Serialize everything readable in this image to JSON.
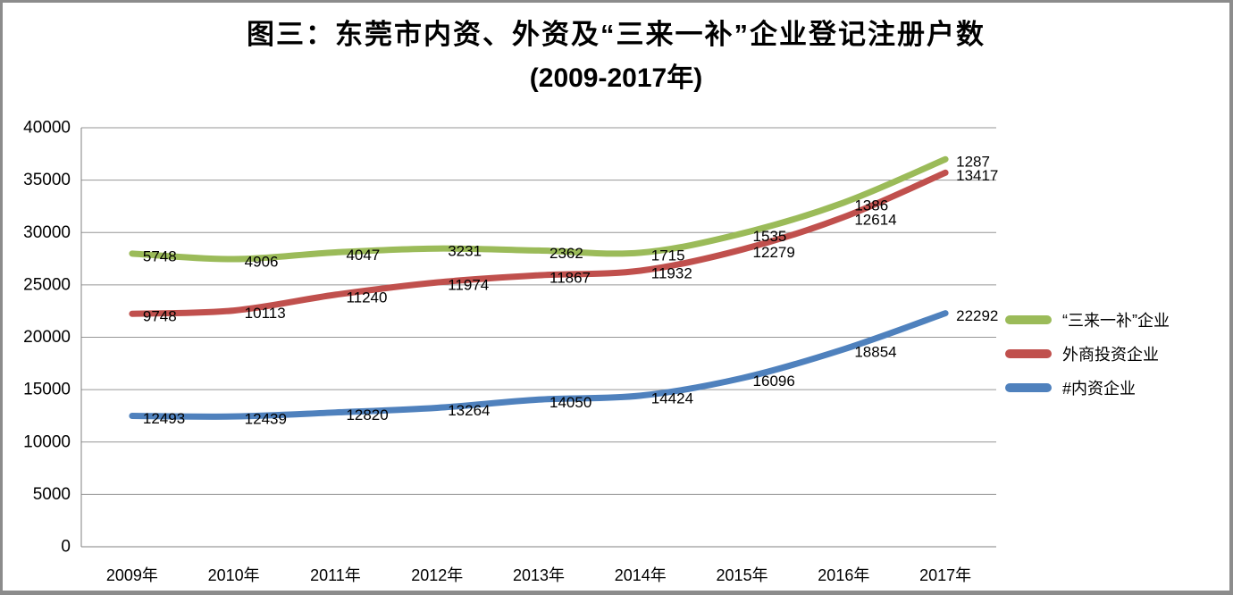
{
  "title": {
    "line1": "图三：东莞市内资、外资及“三来一补”企业登记注册户数",
    "line2": "(2009-2017年)"
  },
  "colors": {
    "domestic_blue": "#4F81BD",
    "foreign_red": "#C0504D",
    "processing_green": "#9BBB59",
    "gridline": "#969696",
    "axis": "#808080",
    "frame_border": "#8C8C8C",
    "text": "#000000"
  },
  "chart_data": {
    "type": "line",
    "stacked": true,
    "smooth": true,
    "grid": true,
    "title": "图三：东莞市内资、外资及“三来一补”企业登记注册户数 (2009-2017年)",
    "xlabel": "",
    "ylabel": "",
    "categories": [
      "2009年",
      "2010年",
      "2011年",
      "2012年",
      "2013年",
      "2014年",
      "2015年",
      "2016年",
      "2017年"
    ],
    "series": [
      {
        "name": "#内资企业",
        "color": "#4F81BD",
        "values": [
          12493,
          12439,
          12820,
          13264,
          14050,
          14424,
          16096,
          18854,
          22292
        ]
      },
      {
        "name": "外商投资企业",
        "color": "#C0504D",
        "values": [
          9748,
          10113,
          11240,
          11974,
          11867,
          11932,
          12279,
          12614,
          13417
        ]
      },
      {
        "name": "“三来一补”企业",
        "color": "#9BBB59",
        "values": [
          5748,
          4906,
          4047,
          3231,
          2362,
          1715,
          1535,
          1386,
          1287
        ]
      }
    ],
    "stacked_totals_note": "lines plotted cumulatively bottom-to-top: blue, blue+red, blue+red+green",
    "y_axis": {
      "min": 0,
      "max": 40000,
      "step": 5000,
      "ticks": [
        "0",
        "5000",
        "10000",
        "15000",
        "20000",
        "25000",
        "30000",
        "35000",
        "40000"
      ]
    },
    "legend": {
      "position": "right",
      "order_top_to_bottom": [
        2,
        1,
        0
      ]
    }
  }
}
